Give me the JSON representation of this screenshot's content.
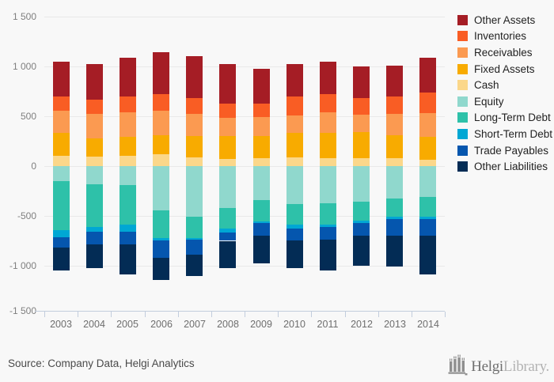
{
  "footer": {
    "source": "Source: Company Data, Helgi Analytics",
    "logo": {
      "icon": "castle-icon",
      "brand_primary": "Helgi",
      "brand_secondary": "Library."
    }
  },
  "colors": {
    "background": "#f8f8f8",
    "gridline": "#e9e9e9",
    "axis": "#c2cddd",
    "y_label": "#7f7f7f",
    "x_label": "#6e6e6e",
    "legend_text": "#222222"
  },
  "chart_data": {
    "type": "bar",
    "variant": "stacked-diverging",
    "title": "",
    "xlabel": "",
    "ylabel": "",
    "legend_position": "right",
    "categories": [
      "2003",
      "2004",
      "2005",
      "2006",
      "2007",
      "2008",
      "2009",
      "2010",
      "2011",
      "2012",
      "2013",
      "2014"
    ],
    "ylim": [
      -1500,
      1500
    ],
    "yticks": [
      1500,
      1000,
      500,
      0,
      -500,
      -1000,
      -1500
    ],
    "ytick_labels": [
      "1 500",
      "1 000",
      "500",
      "0",
      "-500",
      "-1 000",
      "-1 500"
    ],
    "gridlines_at": [
      1500,
      1000,
      500,
      0,
      -500,
      -1000
    ],
    "series": [
      {
        "name": "Other Assets",
        "side": "asset",
        "color": "#a51d25",
        "values": [
          355,
          355,
          385,
          425,
          415,
          390,
          350,
          325,
          325,
          315,
          315,
          355
        ]
      },
      {
        "name": "Inventories",
        "side": "asset",
        "color": "#f95d24",
        "values": [
          140,
          145,
          160,
          165,
          165,
          145,
          140,
          190,
          180,
          170,
          175,
          200
        ]
      },
      {
        "name": "Receivables",
        "side": "asset",
        "color": "#fb9a51",
        "values": [
          225,
          245,
          250,
          245,
          220,
          185,
          190,
          175,
          205,
          170,
          210,
          240
        ]
      },
      {
        "name": "Fixed Assets",
        "side": "asset",
        "color": "#f8ab00",
        "values": [
          230,
          185,
          190,
          190,
          215,
          230,
          220,
          245,
          255,
          265,
          230,
          235
        ]
      },
      {
        "name": "Cash",
        "side": "asset",
        "color": "#fbd78a",
        "values": [
          100,
          95,
          100,
          120,
          85,
          70,
          80,
          85,
          80,
          80,
          80,
          60
        ]
      },
      {
        "name": "Equity",
        "side": "liability",
        "color": "#90d8cd",
        "values": [
          150,
          180,
          190,
          445,
          510,
          420,
          340,
          380,
          370,
          355,
          325,
          310
        ]
      },
      {
        "name": "Long-Term Debt",
        "side": "liability",
        "color": "#2ec1a9",
        "values": [
          495,
          430,
          395,
          275,
          210,
          210,
          215,
          210,
          220,
          195,
          185,
          200
        ]
      },
      {
        "name": "Short-Term Debt",
        "side": "liability",
        "color": "#00a7d4",
        "values": [
          70,
          50,
          70,
          25,
          15,
          35,
          20,
          35,
          20,
          20,
          20,
          20
        ]
      },
      {
        "name": "Trade Payables",
        "side": "liability",
        "color": "#0556ae",
        "values": [
          105,
          125,
          130,
          175,
          155,
          85,
          120,
          120,
          125,
          130,
          165,
          170
        ]
      },
      {
        "name": "Other Liabilities",
        "side": "liability",
        "color": "#032c55",
        "values": [
          230,
          240,
          300,
          225,
          210,
          270,
          285,
          275,
          310,
          300,
          315,
          390
        ]
      }
    ]
  }
}
